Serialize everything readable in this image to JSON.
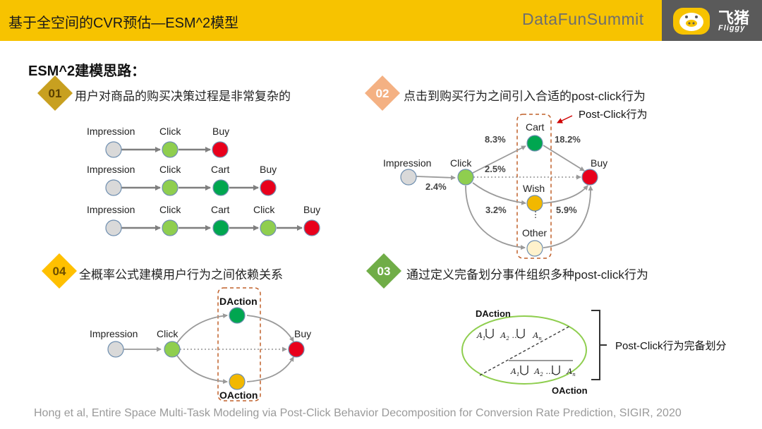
{
  "header": {
    "title": "基于全空间的CVR预估—ESM^2模型",
    "summit": "DataFunSummit",
    "logo_text": "飞猪",
    "logo_sub": "Fliggy"
  },
  "heading": "ESM^2建模思路：",
  "sections": [
    {
      "num": "01",
      "text": "用户对商品的购买决策过程是非常复杂的"
    },
    {
      "num": "02",
      "text": "点击到购买行为之间引入合适的post-click行为"
    },
    {
      "num": "04",
      "text": "全概率公式建模用户行为之间依赖关系"
    },
    {
      "num": "03",
      "text": "通过定义完备划分事件组织多种post-click行为"
    }
  ],
  "s1": {
    "rows": [
      [
        "Impression",
        "Click",
        "Buy"
      ],
      [
        "Impression",
        "Click",
        "Cart",
        "Buy"
      ],
      [
        "Impression",
        "Click",
        "Cart",
        "Click",
        "Buy"
      ]
    ]
  },
  "s2": {
    "post_click_label": "Post-Click行为",
    "impression": "Impression",
    "click": "Click",
    "cart": "Cart",
    "buy": "Buy",
    "wish": "Wish",
    "dots": "⋮",
    "other": "Other",
    "p_click_cart": "8.3%",
    "p_cart_buy": "18.2%",
    "p_click_buy": "2.5%",
    "p_imp_click": "2.4%",
    "p_click_wish": "3.2%",
    "p_wish_buy": "5.9%"
  },
  "s4": {
    "impression": "Impression",
    "click": "Click",
    "buy": "Buy",
    "daction": "DAction",
    "oaction": "OAction"
  },
  "s3": {
    "daction": "DAction",
    "oaction": "OAction",
    "a1": "A",
    "sub1": "1",
    "a2": "A",
    "sub2": "2",
    "cdots": "…",
    "an": "A",
    "subn": "n",
    "partition_label": "Post-Click行为完备划分"
  },
  "footer": "Hong et al, Entire Space Multi-Task Modeling via Post-Click Behavior Decomposition for Conversion Rate Prediction, SIGIR, 2020",
  "colors": {
    "header": "#f7c300",
    "node_gray": "#d9d9d9",
    "node_light_green": "#8fce4f",
    "node_green": "#00a650",
    "node_red": "#e8001c",
    "node_orange": "#f2b800",
    "node_cream": "#fff2cc",
    "diamond_01": "#c8a020",
    "diamond_02": "#f4b183",
    "diamond_04": "#ffc000",
    "diamond_03": "#70ad47"
  },
  "icons": [
    "pig-logo-icon",
    "arrow-icon",
    "union-icon"
  ]
}
